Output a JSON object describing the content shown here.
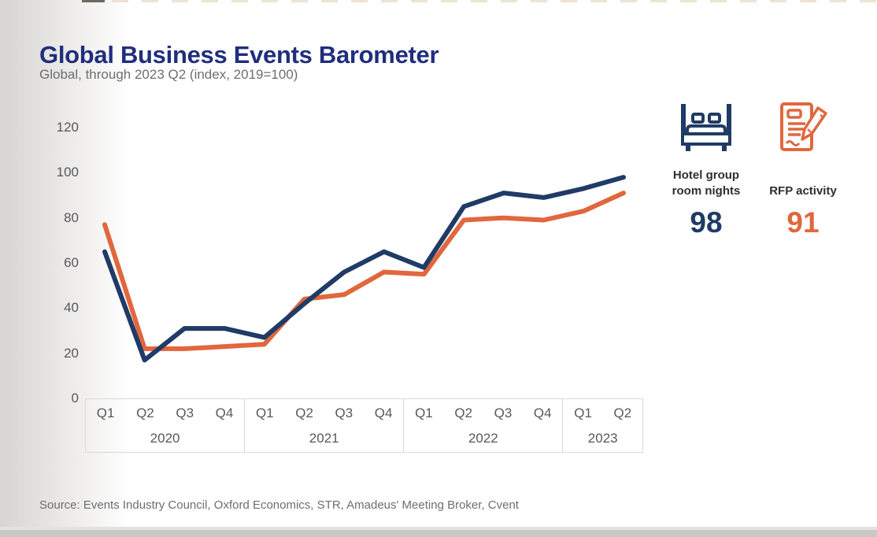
{
  "header": {
    "title": "Global Business Events Barometer",
    "subtitle": "Global, through 2023 Q2 (index, 2019=100)"
  },
  "footer": {
    "source": "Source: Events Industry Council, Oxford Economics, STR, Amadeus' Meeting Broker, Cvent"
  },
  "colors": {
    "title": "#1f2e7d",
    "navy": "#1f3b66",
    "orange": "#e0673e",
    "axis_text": "#57585c",
    "muted_text": "#6d6e71",
    "axis_border": "#d9d9d9"
  },
  "legend": [
    {
      "icon": "bed-icon",
      "label": "Hotel group room nights",
      "value": "98",
      "color": "#1f3b66"
    },
    {
      "icon": "document-pen-icon",
      "label": "RFP activity",
      "value": "91",
      "color": "#e0673e"
    }
  ],
  "chart_data": {
    "type": "line",
    "title": "Global Business Events Barometer",
    "subtitle": "Global, through 2023 Q2 (index, 2019=100)",
    "x_groups": [
      {
        "year": "2020",
        "quarters": [
          "Q1",
          "Q2",
          "Q3",
          "Q4"
        ]
      },
      {
        "year": "2021",
        "quarters": [
          "Q1",
          "Q2",
          "Q3",
          "Q4"
        ]
      },
      {
        "year": "2022",
        "quarters": [
          "Q1",
          "Q2",
          "Q3",
          "Q4"
        ]
      },
      {
        "year": "2023",
        "quarters": [
          "Q1",
          "Q2"
        ]
      }
    ],
    "categories": [
      "2020 Q1",
      "2020 Q2",
      "2020 Q3",
      "2020 Q4",
      "2021 Q1",
      "2021 Q2",
      "2021 Q3",
      "2021 Q4",
      "2022 Q1",
      "2022 Q2",
      "2022 Q3",
      "2022 Q4",
      "2023 Q1",
      "2023 Q2"
    ],
    "series": [
      {
        "name": "Hotel group room nights",
        "color": "#1f3b66",
        "values": [
          65,
          17,
          31,
          31,
          27,
          42,
          56,
          65,
          58,
          85,
          91,
          89,
          93,
          98
        ]
      },
      {
        "name": "RFP activity",
        "color": "#e0673e",
        "values": [
          77,
          22,
          22,
          23,
          24,
          44,
          46,
          56,
          55,
          79,
          80,
          79,
          83,
          91
        ]
      }
    ],
    "yticks": [
      0,
      20,
      40,
      60,
      80,
      100,
      120
    ],
    "ylim": [
      0,
      120
    ],
    "grid": false,
    "legend_position": "right"
  }
}
